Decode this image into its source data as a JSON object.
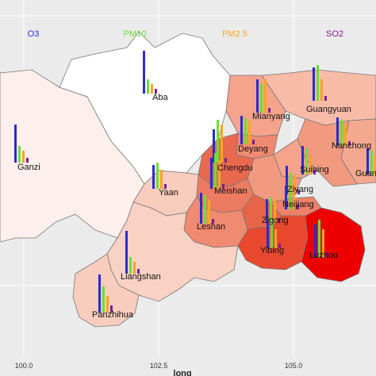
{
  "legend": [
    {
      "label": "O3",
      "color": "#2b2bd1"
    },
    {
      "label": "PM10",
      "color": "#6fdc3a"
    },
    {
      "label": "PM2.5",
      "color": "#f5a623"
    },
    {
      "label": "SO2",
      "color": "#7a1f8f"
    }
  ],
  "axis": {
    "title": "long",
    "ticks": [
      "100.0",
      "102.5",
      "105.0"
    ]
  },
  "cities": [
    {
      "name": "Aba",
      "values": [
        0.9,
        0.3,
        0.2,
        0.1
      ],
      "fill": "#ffffff"
    },
    {
      "name": "Ganzi",
      "values": [
        0.8,
        0.35,
        0.25,
        0.1
      ],
      "fill": "#fdf0ec"
    },
    {
      "name": "Mianyang",
      "values": [
        0.7,
        0.6,
        0.7,
        0.1
      ],
      "fill": "#f5a38b"
    },
    {
      "name": "Guangyuan",
      "values": [
        0.7,
        0.75,
        0.45,
        0.1
      ],
      "fill": "#f7bba8"
    },
    {
      "name": "Deyang",
      "values": [
        0.6,
        0.55,
        0.5,
        0.1
      ],
      "fill": "#f08a70"
    },
    {
      "name": "Nanchong",
      "values": [
        0.6,
        0.55,
        0.45,
        0.1
      ],
      "fill": "#f29a80"
    },
    {
      "name": "Chengdu",
      "values": [
        0.7,
        0.9,
        0.8,
        0.1
      ],
      "fill": "#e9694f"
    },
    {
      "name": "Suining",
      "values": [
        0.6,
        0.55,
        0.4,
        0.1
      ],
      "fill": "#f5a38b"
    },
    {
      "name": "Yaan",
      "values": [
        0.5,
        0.55,
        0.4,
        0.1
      ],
      "fill": "#f9cdbd"
    },
    {
      "name": "Meishan",
      "values": [
        0.65,
        0.75,
        0.6,
        0.1
      ],
      "fill": "#ec7b61"
    },
    {
      "name": "Ziyang",
      "values": [
        0.6,
        0.45,
        0.4,
        0.1
      ],
      "fill": "#f29a80"
    },
    {
      "name": "Neijiang",
      "values": [
        0.5,
        0.65,
        0.55,
        0.1
      ],
      "fill": "#ed8268"
    },
    {
      "name": "Leshan",
      "values": [
        0.65,
        0.6,
        0.5,
        0.1
      ],
      "fill": "#f08a70"
    },
    {
      "name": "Zigong",
      "values": [
        0.5,
        0.55,
        0.5,
        0.1
      ],
      "fill": "#e86448"
    },
    {
      "name": "Yibing",
      "values": [
        0.55,
        0.6,
        0.4,
        0.1
      ],
      "fill": "#e8482d"
    },
    {
      "name": "Luzhou",
      "values": [
        0.7,
        0.8,
        0.6,
        0.1
      ],
      "fill": "#ee0000"
    },
    {
      "name": "Liangshan",
      "values": [
        0.9,
        0.35,
        0.25,
        0.1
      ],
      "fill": "#f9d2c4"
    },
    {
      "name": "Panzhihua",
      "values": [
        0.8,
        0.55,
        0.35,
        0.15
      ],
      "fill": "#f9cdbd"
    },
    {
      "name": "Guang",
      "values": [
        0.55,
        0.5,
        0.4,
        0.1
      ],
      "fill": "#f4a98f"
    }
  ]
}
